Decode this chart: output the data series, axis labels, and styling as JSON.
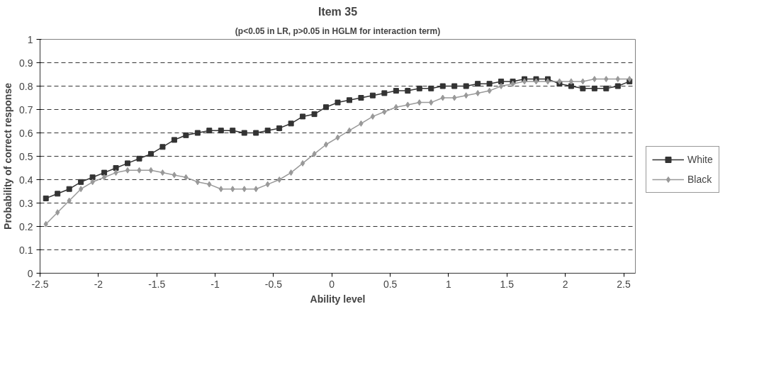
{
  "chart_data": {
    "type": "line",
    "title": "Item 35",
    "subtitle": "(p<0.05 in LR, p>0.05 in HGLM for interaction term)",
    "xlabel": "Ability level",
    "ylabel": "Probability of correct response",
    "x": [
      -2.45,
      -2.35,
      -2.25,
      -2.15,
      -2.05,
      -1.95,
      -1.85,
      -1.75,
      -1.65,
      -1.55,
      -1.45,
      -1.35,
      -1.25,
      -1.15,
      -1.05,
      -0.95,
      -0.85,
      -0.75,
      -0.65,
      -0.55,
      -0.45,
      -0.35,
      -0.25,
      -0.15,
      -0.05,
      0.05,
      0.15,
      0.25,
      0.35,
      0.45,
      0.55,
      0.65,
      0.75,
      0.85,
      0.95,
      1.05,
      1.15,
      1.25,
      1.35,
      1.45,
      1.55,
      1.65,
      1.75,
      1.85,
      1.95,
      2.05,
      2.15,
      2.25,
      2.35,
      2.45,
      2.55
    ],
    "series": [
      {
        "name": "White",
        "color": "#333333",
        "marker": "square",
        "values": [
          0.32,
          0.34,
          0.36,
          0.39,
          0.41,
          0.43,
          0.45,
          0.47,
          0.49,
          0.51,
          0.54,
          0.57,
          0.59,
          0.6,
          0.61,
          0.61,
          0.61,
          0.6,
          0.6,
          0.61,
          0.62,
          0.64,
          0.67,
          0.68,
          0.71,
          0.73,
          0.74,
          0.75,
          0.76,
          0.77,
          0.78,
          0.78,
          0.79,
          0.79,
          0.8,
          0.8,
          0.8,
          0.81,
          0.81,
          0.82,
          0.82,
          0.83,
          0.83,
          0.83,
          0.81,
          0.8,
          0.79,
          0.79,
          0.79,
          0.8,
          0.82
        ]
      },
      {
        "name": "Black",
        "color": "#999999",
        "marker": "diamond",
        "values": [
          0.21,
          0.26,
          0.31,
          0.36,
          0.39,
          0.41,
          0.43,
          0.44,
          0.44,
          0.44,
          0.43,
          0.42,
          0.41,
          0.39,
          0.38,
          0.36,
          0.36,
          0.36,
          0.36,
          0.38,
          0.4,
          0.43,
          0.47,
          0.51,
          0.55,
          0.58,
          0.61,
          0.64,
          0.67,
          0.69,
          0.71,
          0.72,
          0.73,
          0.73,
          0.75,
          0.75,
          0.76,
          0.77,
          0.78,
          0.8,
          0.81,
          0.82,
          0.82,
          0.82,
          0.82,
          0.82,
          0.82,
          0.83,
          0.83,
          0.83,
          0.83
        ]
      }
    ],
    "xlim": [
      -2.5,
      2.6
    ],
    "xticks": [
      -2.5,
      -2,
      -1.5,
      -1,
      -0.5,
      0,
      0.5,
      1,
      1.5,
      2,
      2.5
    ],
    "ylim": [
      0,
      1
    ],
    "yticks": [
      0,
      0.1,
      0.2,
      0.3,
      0.4,
      0.5,
      0.6,
      0.7,
      0.8,
      0.9,
      1
    ],
    "grid": "y",
    "legend": "right",
    "line_style": "solid"
  }
}
